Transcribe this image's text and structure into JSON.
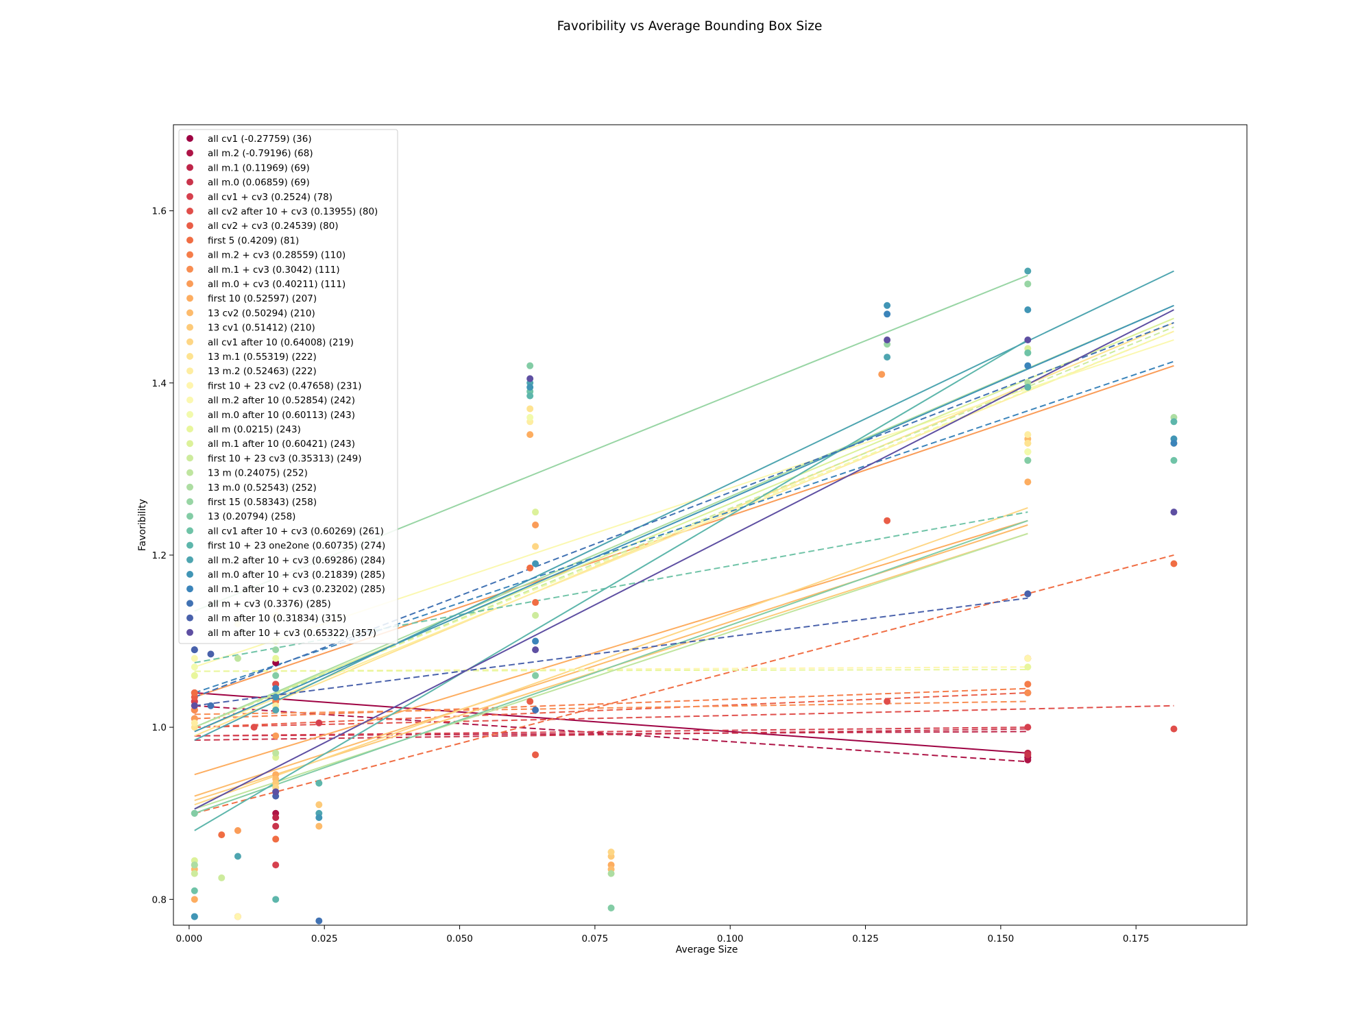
{
  "chart_data": {
    "type": "scatter",
    "title": "Favoribility vs Average Bounding Box Size",
    "xlabel": "Average Size",
    "ylabel": "Favoribility",
    "xlim": [
      -0.0029,
      0.1955
    ],
    "ylim": [
      0.77,
      1.7
    ],
    "xticks": [
      0.0,
      0.025,
      0.05,
      0.075,
      0.1,
      0.125,
      0.15,
      0.175
    ],
    "xtick_labels": [
      "0.000",
      "0.025",
      "0.050",
      "0.075",
      "0.100",
      "0.125",
      "0.150",
      "0.175"
    ],
    "yticks": [
      0.8,
      1.0,
      1.2,
      1.4,
      1.6
    ],
    "ytick_labels": [
      "0.8",
      "1.0",
      "1.2",
      "1.4",
      "1.6"
    ],
    "grid": false,
    "legend_position": "upper-left",
    "colormap": "Spectral",
    "series": [
      {
        "name": "all cv1 (-0.27759) (36)",
        "color": "#9e0142",
        "x": [
          0.001,
          0.016,
          0.155,
          0.155
        ],
        "y": [
          1.04,
          1.075,
          0.965,
          0.965
        ],
        "fit": [
          [
            0.001,
            1.04
          ],
          [
            0.155,
            0.97
          ]
        ],
        "fit_style": "solid"
      },
      {
        "name": "all m.2 (-0.79196) (68)",
        "color": "#ae1446",
        "x": [
          0.001,
          0.016,
          0.155
        ],
        "y": [
          1.03,
          0.9,
          0.962
        ],
        "fit": [
          [
            0.001,
            1.025
          ],
          [
            0.155,
            0.96
          ]
        ],
        "fit_style": "dashed"
      },
      {
        "name": "all m.1 (0.11969) (69)",
        "color": "#be2549",
        "x": [
          0.001,
          0.016,
          0.155
        ],
        "y": [
          1.02,
          0.895,
          0.97
        ],
        "fit": [
          [
            0.001,
            0.99
          ],
          [
            0.155,
            0.995
          ]
        ],
        "fit_style": "dashed"
      },
      {
        "name": "all m.0 (0.06859) (69)",
        "color": "#c9344b",
        "x": [
          0.001,
          0.016,
          0.155
        ],
        "y": [
          1.01,
          0.885,
          0.968
        ],
        "fit": [
          [
            0.001,
            0.985
          ],
          [
            0.155,
            0.998
          ]
        ],
        "fit_style": "dashed"
      },
      {
        "name": "all cv1 + cv3 (0.2524) (78)",
        "color": "#d6404e",
        "x": [
          0.001,
          0.016,
          0.016,
          0.024,
          0.155
        ],
        "y": [
          1.03,
          0.84,
          1.05,
          1.005,
          1.0
        ],
        "fit": [
          [
            0.001,
            0.99
          ],
          [
            0.155,
            1.0
          ]
        ],
        "fit_style": "dashed"
      },
      {
        "name": "all cv2 after 10 + cv3 (0.13955) (80)",
        "color": "#e04e4a",
        "x": [
          0.001,
          0.012,
          0.016,
          0.129,
          0.155,
          0.182
        ],
        "y": [
          1.02,
          1.0,
          1.05,
          1.03,
          1.04,
          0.998
        ],
        "fit": [
          [
            0.001,
            1.0
          ],
          [
            0.182,
            1.025
          ]
        ],
        "fit_style": "dashed"
      },
      {
        "name": "all cv2 + cv3 (0.24539) (80)",
        "color": "#e95d47",
        "x": [
          0.001,
          0.009,
          0.063,
          0.064,
          0.129,
          0.155
        ],
        "y": [
          1.035,
          0.78,
          1.03,
          0.968,
          1.24,
          1.08
        ],
        "fit": [
          [
            0.001,
            1.0
          ],
          [
            0.155,
            1.04
          ]
        ],
        "fit_style": "dashed"
      },
      {
        "name": "first 5 (0.4209) (81)",
        "color": "#f06d43",
        "x": [
          0.001,
          0.006,
          0.016,
          0.063,
          0.064,
          0.182
        ],
        "y": [
          1.04,
          0.875,
          0.87,
          1.185,
          1.145,
          1.19
        ],
        "fit": [
          [
            0.001,
            0.9
          ],
          [
            0.182,
            1.2
          ]
        ],
        "fit_style": "dashed"
      },
      {
        "name": "all m.2 + cv3 (0.28559) (110)",
        "color": "#f57d4a",
        "x": [
          0.001,
          0.016,
          0.155
        ],
        "y": [
          1.025,
          1.03,
          1.05
        ],
        "fit": [
          [
            0.001,
            1.01
          ],
          [
            0.155,
            1.045
          ]
        ],
        "fit_style": "dashed"
      },
      {
        "name": "all m.1 + cv3 (0.3042) (111)",
        "color": "#f88d51",
        "x": [
          0.001,
          0.016,
          0.155
        ],
        "y": [
          1.02,
          1.035,
          1.04
        ],
        "fit": [
          [
            0.001,
            1.015
          ],
          [
            0.155,
            1.03
          ]
        ],
        "fit_style": "dashed"
      },
      {
        "name": "all m.0 + cv3 (0.40211) (111)",
        "color": "#fa9c58",
        "x": [
          0.001,
          0.009,
          0.016,
          0.064,
          0.128,
          0.182
        ],
        "y": [
          1.01,
          0.88,
          0.99,
          1.235,
          1.41,
          1.33
        ],
        "fit": [
          [
            0.001,
            1.035
          ],
          [
            0.182,
            1.42
          ]
        ],
        "fit_style": "solid"
      },
      {
        "name": "first 10 (0.52597) (207)",
        "color": "#fdad60",
        "x": [
          0.001,
          0.016,
          0.063,
          0.078,
          0.155
        ],
        "y": [
          0.8,
          0.945,
          1.34,
          0.84,
          1.285
        ],
        "fit": [
          [
            0.001,
            0.945
          ],
          [
            0.155,
            1.24
          ]
        ],
        "fit_style": "solid"
      },
      {
        "name": "13 cv2 (0.50294) (210)",
        "color": "#fdbb6c",
        "x": [
          0.001,
          0.016,
          0.024,
          0.078,
          0.155
        ],
        "y": [
          0.835,
          0.94,
          0.885,
          0.835,
          1.335
        ],
        "fit": [
          [
            0.001,
            0.92
          ],
          [
            0.155,
            1.235
          ]
        ],
        "fit_style": "solid"
      },
      {
        "name": "13 cv1 (0.51412) (210)",
        "color": "#fdca79",
        "x": [
          0.001,
          0.016,
          0.024,
          0.078,
          0.155
        ],
        "y": [
          0.83,
          0.935,
          0.91,
          0.85,
          1.32
        ],
        "fit": [
          [
            0.001,
            0.915
          ],
          [
            0.155,
            1.225
          ]
        ],
        "fit_style": "solid"
      },
      {
        "name": "all cv1 after 10 (0.64008) (219)",
        "color": "#fed685",
        "x": [
          0.001,
          0.016,
          0.064,
          0.078,
          0.155
        ],
        "y": [
          0.84,
          0.93,
          1.21,
          0.855,
          1.33
        ],
        "fit": [
          [
            0.001,
            0.91
          ],
          [
            0.155,
            1.255
          ]
        ],
        "fit_style": "solid"
      },
      {
        "name": "13 m.1 (0.55319) (222)",
        "color": "#fee391",
        "x": [
          0.001,
          0.016,
          0.063,
          0.129,
          0.155
        ],
        "y": [
          1.0,
          1.02,
          1.37,
          1.45,
          1.33
        ],
        "fit": [
          [
            0.001,
            0.99
          ],
          [
            0.182,
            1.47
          ]
        ],
        "fit_style": "solid"
      },
      {
        "name": "13 m.2 (0.52463) (222)",
        "color": "#feeda1",
        "x": [
          0.001,
          0.016,
          0.063,
          0.155
        ],
        "y": [
          1.005,
          1.025,
          1.355,
          1.34
        ],
        "fit": [
          [
            0.001,
            0.995
          ],
          [
            0.182,
            1.46
          ]
        ],
        "fit_style": "solid"
      },
      {
        "name": "first 10 + 23 cv2 (0.47658) (231)",
        "color": "#fff5ae",
        "x": [
          0.001,
          0.009,
          0.016,
          0.155
        ],
        "y": [
          1.06,
          0.78,
          1.1,
          1.08
        ],
        "fit": [
          [
            0.001,
            1.065
          ],
          [
            0.155,
            1.07
          ]
        ],
        "fit_style": "dashed"
      },
      {
        "name": "all m.2 after 10 (0.52854) (242)",
        "color": "#fbf8b0",
        "x": [
          0.001,
          0.009,
          0.016,
          0.155
        ],
        "y": [
          1.08,
          1.12,
          1.13,
          1.32
        ],
        "fit": [
          [
            0.001,
            1.07
          ],
          [
            0.182,
            1.45
          ]
        ],
        "fit_style": "solid"
      },
      {
        "name": "all m.0 after 10 (0.60113) (243)",
        "color": "#f2faac",
        "x": [
          0.001,
          0.016,
          0.063,
          0.155
        ],
        "y": [
          1.07,
          1.1,
          1.36,
          1.32
        ],
        "fit": [
          [
            0.001,
            1.0
          ],
          [
            0.182,
            1.46
          ]
        ],
        "fit_style": "dashed"
      },
      {
        "name": "all m (0.0215) (243)",
        "color": "#e8f69c",
        "x": [
          0.001,
          0.016,
          0.155
        ],
        "y": [
          1.06,
          1.08,
          1.07
        ],
        "fit": [
          [
            0.001,
            1.065
          ],
          [
            0.155,
            1.067
          ]
        ],
        "fit_style": "dashed"
      },
      {
        "name": "all m.1 after 10 (0.60421) (243)",
        "color": "#dcf19a",
        "x": [
          0.001,
          0.016,
          0.064,
          0.155
        ],
        "y": [
          0.845,
          0.965,
          1.25,
          1.44
        ],
        "fit": [
          [
            0.001,
            1.0
          ],
          [
            0.182,
            1.475
          ]
        ],
        "fit_style": "solid"
      },
      {
        "name": "first 10 + 23 cv3 (0.35313) (249)",
        "color": "#cdeb9d",
        "x": [
          0.001,
          0.006,
          0.016,
          0.064,
          0.155
        ],
        "y": [
          0.83,
          0.825,
          0.925,
          1.13,
          1.435
        ],
        "fit": [
          [
            0.001,
            1.0
          ],
          [
            0.182,
            1.465
          ]
        ],
        "fit_style": "dashed"
      },
      {
        "name": "13 m (0.24075) (252)",
        "color": "#bfe59f",
        "x": [
          0.001,
          0.009,
          0.016,
          0.155
        ],
        "y": [
          0.84,
          1.08,
          0.97,
          1.31
        ],
        "fit": [
          [
            0.001,
            0.905
          ],
          [
            0.155,
            1.225
          ]
        ],
        "fit_style": "solid"
      },
      {
        "name": "13 m.0 (0.52543) (252)",
        "color": "#addda2",
        "x": [
          0.001,
          0.016,
          0.078,
          0.155,
          0.182
        ],
        "y": [
          0.84,
          0.925,
          0.83,
          1.4,
          1.36
        ],
        "fit": [
          [
            0.001,
            1.0
          ],
          [
            0.182,
            1.49
          ]
        ],
        "fit_style": "solid"
      },
      {
        "name": "first 15 (0.58343) (258)",
        "color": "#98d5a4",
        "x": [
          0.001,
          0.016,
          0.129,
          0.155
        ],
        "y": [
          0.9,
          1.09,
          1.445,
          1.515
        ],
        "fit": [
          [
            0.001,
            1.135
          ],
          [
            0.155,
            1.525
          ]
        ],
        "fit_style": "solid"
      },
      {
        "name": "13 (0.20794) (258)",
        "color": "#83cca5",
        "x": [
          0.001,
          0.016,
          0.063,
          0.064,
          0.078,
          0.155
        ],
        "y": [
          0.9,
          1.06,
          1.42,
          1.06,
          0.79,
          1.31
        ],
        "fit": [
          [
            0.001,
            0.9
          ],
          [
            0.155,
            1.24
          ]
        ],
        "fit_style": "solid"
      },
      {
        "name": "all cv1 after 10 + cv3 (0.60269) (261)",
        "color": "#6fc3a7",
        "x": [
          0.001,
          0.016,
          0.063,
          0.155,
          0.182
        ],
        "y": [
          0.81,
          1.02,
          1.39,
          1.435,
          1.31
        ],
        "fit": [
          [
            0.001,
            1.075
          ],
          [
            0.155,
            1.25
          ]
        ],
        "fit_style": "dashed"
      },
      {
        "name": "first 10 + 23 one2one (0.60735) (274)",
        "color": "#5db6ab",
        "x": [
          0.001,
          0.016,
          0.024,
          0.063,
          0.155,
          0.182
        ],
        "y": [
          0.78,
          0.8,
          0.935,
          1.385,
          1.395,
          1.355
        ],
        "fit": [
          [
            0.001,
            0.88
          ],
          [
            0.155,
            1.45
          ]
        ],
        "fit_style": "solid"
      },
      {
        "name": "all m.2 after 10 + cv3 (0.69286) (284)",
        "color": "#4ea5b0",
        "x": [
          0.001,
          0.009,
          0.016,
          0.024,
          0.063,
          0.129,
          0.155
        ],
        "y": [
          0.78,
          0.85,
          1.02,
          0.9,
          1.4,
          1.43,
          1.53
        ],
        "fit": [
          [
            0.001,
            0.985
          ],
          [
            0.182,
            1.53
          ]
        ],
        "fit_style": "solid"
      },
      {
        "name": "all m.0 after 10 + cv3 (0.21839) (285)",
        "color": "#4195b5",
        "x": [
          0.001,
          0.016,
          0.024,
          0.063,
          0.064,
          0.129,
          0.155,
          0.182
        ],
        "y": [
          0.78,
          1.035,
          0.895,
          1.395,
          1.19,
          1.49,
          1.485,
          1.335
        ],
        "fit": [
          [
            0.001,
            0.995
          ],
          [
            0.182,
            1.49
          ]
        ],
        "fit_style": "solid"
      },
      {
        "name": "all m.1 after 10 + cv3 (0.23202) (285)",
        "color": "#3b84ba",
        "x": [
          0.001,
          0.016,
          0.064,
          0.129,
          0.155,
          0.182
        ],
        "y": [
          1.09,
          1.045,
          1.1,
          1.48,
          1.42,
          1.33
        ],
        "fit": [
          [
            0.001,
            1.04
          ],
          [
            0.182,
            1.425
          ]
        ],
        "fit_style": "dashed"
      },
      {
        "name": "all m + cv3 (0.3376) (285)",
        "color": "#4172b3",
        "x": [
          0.001,
          0.004,
          0.024,
          0.064,
          0.155
        ],
        "y": [
          1.09,
          1.025,
          0.775,
          1.02,
          1.155
        ],
        "fit": [
          [
            0.001,
            1.035
          ],
          [
            0.182,
            1.47
          ]
        ],
        "fit_style": "dashed"
      },
      {
        "name": "all m after 10 (0.31834) (315)",
        "color": "#4961ab",
        "x": [
          0.001,
          0.004,
          0.016,
          0.155
        ],
        "y": [
          1.09,
          1.085,
          0.92,
          1.155
        ],
        "fit": [
          [
            0.001,
            1.025
          ],
          [
            0.155,
            1.15
          ]
        ],
        "fit_style": "dashed"
      },
      {
        "name": "all m after 10 + cv3 (0.65322) (357)",
        "color": "#5e4fa2",
        "x": [
          0.001,
          0.016,
          0.063,
          0.064,
          0.129,
          0.155,
          0.182
        ],
        "y": [
          1.025,
          0.925,
          1.405,
          1.09,
          1.45,
          1.45,
          1.25
        ],
        "fit": [
          [
            0.001,
            0.905
          ],
          [
            0.182,
            1.485
          ]
        ],
        "fit_style": "solid"
      }
    ]
  }
}
